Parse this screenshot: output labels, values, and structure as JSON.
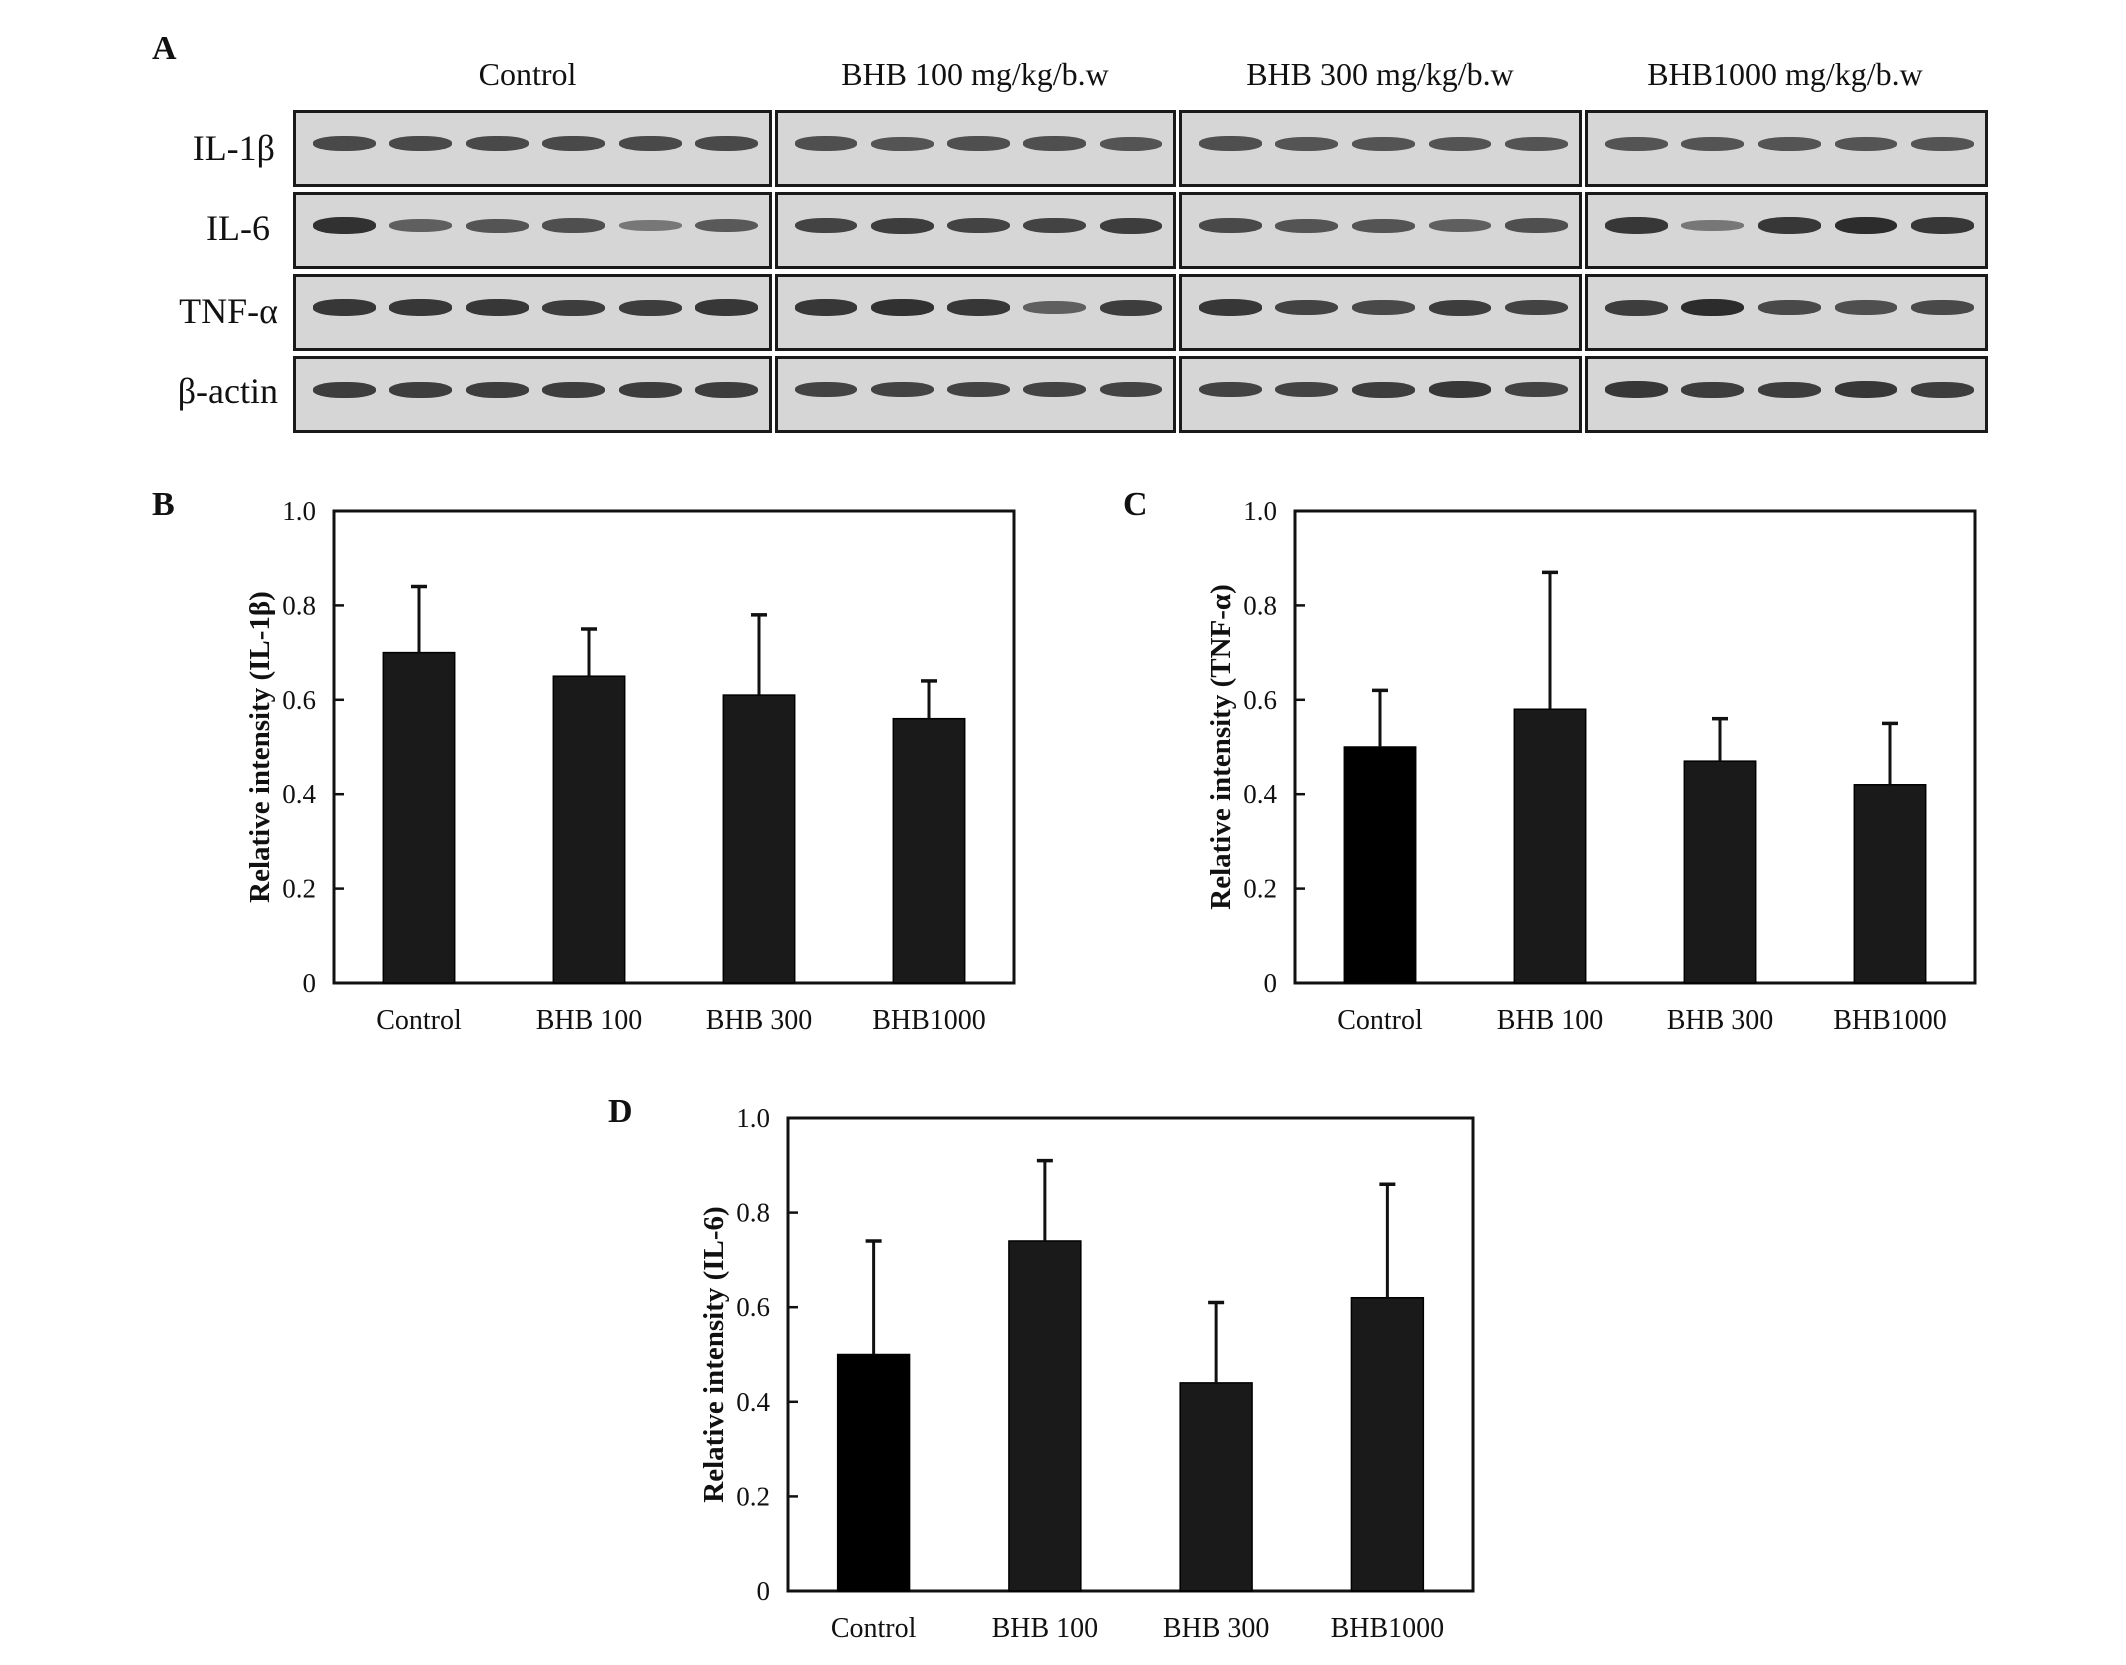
{
  "panel_labels": {
    "a": "A",
    "b": "B",
    "c": "C",
    "d": "D"
  },
  "western_blot": {
    "groups": [
      "Control",
      "BHB 100 mg/kg/b.w",
      "BHB 300 mg/kg/b.w",
      "BHB1000 mg/kg/b.w"
    ],
    "rows": [
      "IL-1β",
      "IL-6",
      "TNF-α",
      "β-actin"
    ],
    "lanes_per_group": [
      6,
      5,
      5,
      5
    ],
    "band_intensity": [
      [
        [
          0.7,
          0.7,
          0.7,
          0.7,
          0.7,
          0.7
        ],
        [
          0.65,
          0.6,
          0.65,
          0.65,
          0.6
        ],
        [
          0.65,
          0.6,
          0.6,
          0.6,
          0.6
        ],
        [
          0.6,
          0.6,
          0.6,
          0.6,
          0.6
        ]
      ],
      [
        [
          0.9,
          0.5,
          0.6,
          0.65,
          0.3,
          0.55
        ],
        [
          0.75,
          0.8,
          0.75,
          0.75,
          0.8
        ],
        [
          0.7,
          0.6,
          0.6,
          0.5,
          0.65
        ],
        [
          0.85,
          0.3,
          0.85,
          0.95,
          0.85
        ]
      ],
      [
        [
          0.85,
          0.85,
          0.85,
          0.8,
          0.8,
          0.85
        ],
        [
          0.85,
          0.9,
          0.85,
          0.5,
          0.8
        ],
        [
          0.85,
          0.75,
          0.7,
          0.8,
          0.75
        ],
        [
          0.8,
          0.95,
          0.7,
          0.65,
          0.7
        ]
      ],
      [
        [
          0.8,
          0.8,
          0.8,
          0.8,
          0.8,
          0.8
        ],
        [
          0.75,
          0.75,
          0.75,
          0.75,
          0.75
        ],
        [
          0.75,
          0.75,
          0.8,
          0.85,
          0.75
        ],
        [
          0.85,
          0.8,
          0.8,
          0.85,
          0.8
        ]
      ]
    ]
  },
  "chart_data": [
    {
      "type": "bar",
      "panel": "B",
      "categories": [
        "Control",
        "BHB 100",
        "BHB 300",
        "BHB1000"
      ],
      "values": [
        0.7,
        0.65,
        0.61,
        0.56
      ],
      "error": [
        0.14,
        0.1,
        0.17,
        0.08
      ],
      "colors": [
        "#1a1a1a",
        "#1a1a1a",
        "#1a1a1a",
        "#1a1a1a"
      ],
      "title": "",
      "xlabel": "",
      "ylabel": "Relative intensity  (IL-1β)",
      "ylim": [
        0,
        1.0
      ],
      "yticks": [
        "0",
        "0.2",
        "0.4",
        "0.6",
        "0.8",
        "1.0"
      ],
      "grid": false
    },
    {
      "type": "bar",
      "panel": "C",
      "categories": [
        "Control",
        "BHB 100",
        "BHB 300",
        "BHB1000"
      ],
      "values": [
        0.5,
        0.58,
        0.47,
        0.42
      ],
      "error": [
        0.12,
        0.29,
        0.09,
        0.13
      ],
      "colors": [
        "#000000",
        "#1a1a1a",
        "#1a1a1a",
        "#1a1a1a"
      ],
      "title": "",
      "xlabel": "",
      "ylabel": "Relative intensity  (TNF-α)",
      "ylim": [
        0,
        1.0
      ],
      "yticks": [
        "0",
        "0.2",
        "0.4",
        "0.6",
        "0.8",
        "1.0"
      ],
      "grid": false
    },
    {
      "type": "bar",
      "panel": "D",
      "categories": [
        "Control",
        "BHB 100",
        "BHB 300",
        "BHB1000"
      ],
      "values": [
        0.5,
        0.74,
        0.44,
        0.62
      ],
      "error": [
        0.24,
        0.17,
        0.17,
        0.24
      ],
      "colors": [
        "#000000",
        "#1a1a1a",
        "#1a1a1a",
        "#1a1a1a"
      ],
      "title": "",
      "xlabel": "",
      "ylabel": "Relative intensity  (IL-6)",
      "ylim": [
        0,
        1.0
      ],
      "yticks": [
        "0",
        "0.2",
        "0.4",
        "0.6",
        "0.8",
        "1.0"
      ],
      "grid": false
    }
  ]
}
